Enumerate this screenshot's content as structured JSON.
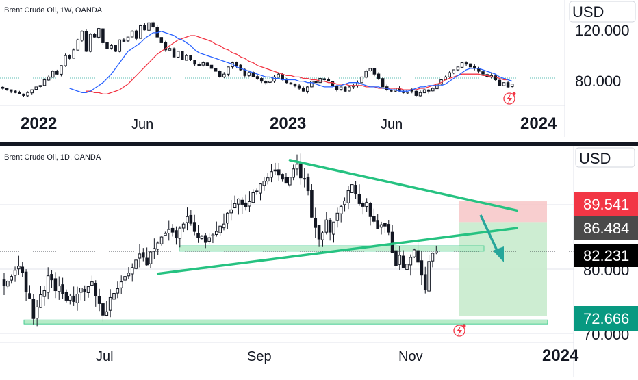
{
  "colors": {
    "background": "#ffffff",
    "candle": "#131722",
    "ma_fast": "#2962ff",
    "ma_slow": "#f23645",
    "trendline": "#26c281",
    "arrow": "#26a69a",
    "stop_zone": "#f7c5c7",
    "target_zone": "#c8ebcd",
    "support_zone": "#b6ecc8",
    "tag_stop": "#f23645",
    "tag_entry": "#4a4a4a",
    "tag_last": "#000000",
    "tag_target": "#089981"
  },
  "chart_data": [
    {
      "type": "candlestick",
      "title": "Brent Crude Oil, 1W, OANDA",
      "currency": "USD",
      "y_ticks": [
        "120.000",
        "80.000"
      ],
      "ylim": [
        66,
        140
      ],
      "x_ticks": [
        {
          "label": "2022",
          "date": "2022-01-01"
        },
        {
          "label": "Jun",
          "date": "2022-06-01"
        },
        {
          "label": "2023",
          "date": "2023-01-01"
        },
        {
          "label": "Jun",
          "date": "2023-06-01"
        },
        {
          "label": "2024",
          "date": "2024-01-01"
        }
      ],
      "closes": [
        78,
        77,
        76,
        75,
        74,
        73,
        75,
        77,
        79,
        80,
        84,
        86,
        90,
        88,
        94,
        101,
        99,
        105,
        112,
        118,
        104,
        116,
        114,
        120,
        110,
        106,
        108,
        104,
        112,
        111,
        114,
        118,
        113,
        122,
        119,
        124,
        121,
        114,
        110,
        105,
        106,
        100,
        104,
        98,
        101,
        98,
        95,
        94,
        96,
        94,
        92,
        90,
        86,
        88,
        93,
        96,
        94,
        91,
        87,
        89,
        86,
        85,
        83,
        82,
        83,
        86,
        88,
        84,
        82,
        81,
        80,
        78,
        76,
        79,
        83,
        82,
        85,
        84,
        83,
        80,
        77,
        79,
        76,
        79,
        80,
        82,
        86,
        90,
        92,
        88,
        85,
        79,
        77,
        76,
        78,
        76,
        75,
        77,
        76,
        73,
        75,
        77,
        76,
        78,
        81,
        84,
        86,
        89,
        91,
        93,
        96,
        95,
        93,
        92,
        90,
        88,
        86,
        87,
        84,
        80,
        82,
        79,
        81
      ],
      "ma_fast": [
        78,
        77,
        76,
        75,
        75,
        76,
        78,
        80,
        82,
        85,
        88,
        92,
        96,
        100,
        104,
        106,
        108,
        110,
        113,
        115,
        117,
        117,
        118,
        117,
        116,
        115,
        113,
        112,
        110,
        108,
        105,
        103,
        102,
        101,
        100,
        99,
        98,
        97,
        96,
        95,
        93,
        92,
        91,
        90,
        89,
        88,
        87,
        86,
        86,
        85,
        85,
        84,
        84,
        84,
        84,
        83,
        83,
        82,
        82,
        81,
        80,
        79,
        79,
        79,
        80,
        80,
        81,
        82,
        82,
        82,
        81,
        80,
        79,
        79,
        79,
        78,
        78,
        77,
        77,
        76,
        76,
        76,
        77,
        78,
        79,
        79,
        80,
        80,
        80,
        80,
        81,
        83,
        85,
        87,
        89,
        91,
        92,
        92,
        92,
        91,
        90,
        89,
        88,
        86,
        85,
        84,
        83
      ],
      "ma_slow": [
        76,
        76,
        75,
        75,
        74,
        74,
        75,
        76,
        77,
        79,
        81,
        84,
        87,
        90,
        93,
        96,
        99,
        102,
        104,
        106,
        108,
        110,
        112,
        113,
        114,
        115,
        115,
        114,
        113,
        112,
        111,
        109,
        108,
        106,
        105,
        103,
        102,
        100,
        99,
        97,
        96,
        94,
        93,
        92,
        91,
        90,
        89,
        88,
        87,
        87,
        86,
        86,
        85,
        85,
        84,
        84,
        83,
        83,
        82,
        82,
        81,
        81,
        81,
        80,
        80,
        80,
        80,
        79,
        79,
        79,
        78,
        78,
        78,
        78,
        78,
        78,
        77,
        77,
        77,
        77,
        78,
        78,
        79,
        80,
        81,
        82,
        84,
        85,
        86,
        87,
        88,
        88,
        88,
        88,
        88,
        87,
        87,
        86,
        86,
        85,
        84,
        84
      ]
    },
    {
      "type": "candlestick",
      "title": "Brent Crude Oil, 1D, OANDA",
      "currency": "USD",
      "y_ticks": [
        "80.000",
        "70.000"
      ],
      "ylim": [
        68.8,
        97.7
      ],
      "x_ticks": [
        {
          "label": "Jul",
          "date": "2023-07-01"
        },
        {
          "label": "Sep",
          "date": "2023-09-01"
        },
        {
          "label": "Nov",
          "date": "2023-11-01"
        },
        {
          "label": "2024",
          "date": "2024-01-01"
        }
      ],
      "closes": [
        77.2,
        77.8,
        78.5,
        79.4,
        80.0,
        79.1,
        76.2,
        75.3,
        72.3,
        74.0,
        75.8,
        76.4,
        78.6,
        78.0,
        76.4,
        77.1,
        76.0,
        75.0,
        75.6,
        74.8,
        75.9,
        76.8,
        76.2,
        77.0,
        77.7,
        75.6,
        74.5,
        72.8,
        73.3,
        75.4,
        76.0,
        76.7,
        77.7,
        78.5,
        79.0,
        79.8,
        80.9,
        81.8,
        81.3,
        80.2,
        82.1,
        82.6,
        83.4,
        84.3,
        84.8,
        85.4,
        85.0,
        84.2,
        85.6,
        86.2,
        87.3,
        86.3,
        85.1,
        84.2,
        84.4,
        83.5,
        84.2,
        84.6,
        85.1,
        85.9,
        86.2,
        87.8,
        88.3,
        89.2,
        89.9,
        89.1,
        88.7,
        89.5,
        90.8,
        91.0,
        92.1,
        92.5,
        93.0,
        93.9,
        94.0,
        93.4,
        92.8,
        92.2,
        93.1,
        94.3,
        95.0,
        93.0,
        92.9,
        91.1,
        87.2,
        85.7,
        84.0,
        84.9,
        86.8,
        85.0,
        86.5,
        87.8,
        88.8,
        89.6,
        91.1,
        92.0,
        90.6,
        89.2,
        88.8,
        89.4,
        87.3,
        86.6,
        85.5,
        86.1,
        85.9,
        85.0,
        82.0,
        80.1,
        81.6,
        79.8,
        80.3,
        81.3,
        82.4,
        80.6,
        78.7,
        76.6,
        80.7,
        81.9,
        82.2
      ],
      "lines": [
        {
          "name": "resistance",
          "from": {
            "bar": 78,
            "price": 95.6
          },
          "to": {
            "bar": 140,
            "price": 88.2
          }
        },
        {
          "name": "support",
          "from": {
            "bar": 42,
            "price": 78.9
          },
          "to": {
            "bar": 140,
            "price": 85.6
          }
        }
      ],
      "zones": [
        {
          "name": "support-low",
          "price_low": 71.5,
          "price_high": 72.1
        },
        {
          "name": "support-mid",
          "price_low": 82.2,
          "price_high": 83.0
        }
      ],
      "position": {
        "entry": 86.484,
        "stop": 89.541,
        "target": 72.666
      },
      "price_tags": {
        "stop": "89.541",
        "entry": "86.484",
        "last": "82.231",
        "target": "72.666"
      }
    }
  ]
}
